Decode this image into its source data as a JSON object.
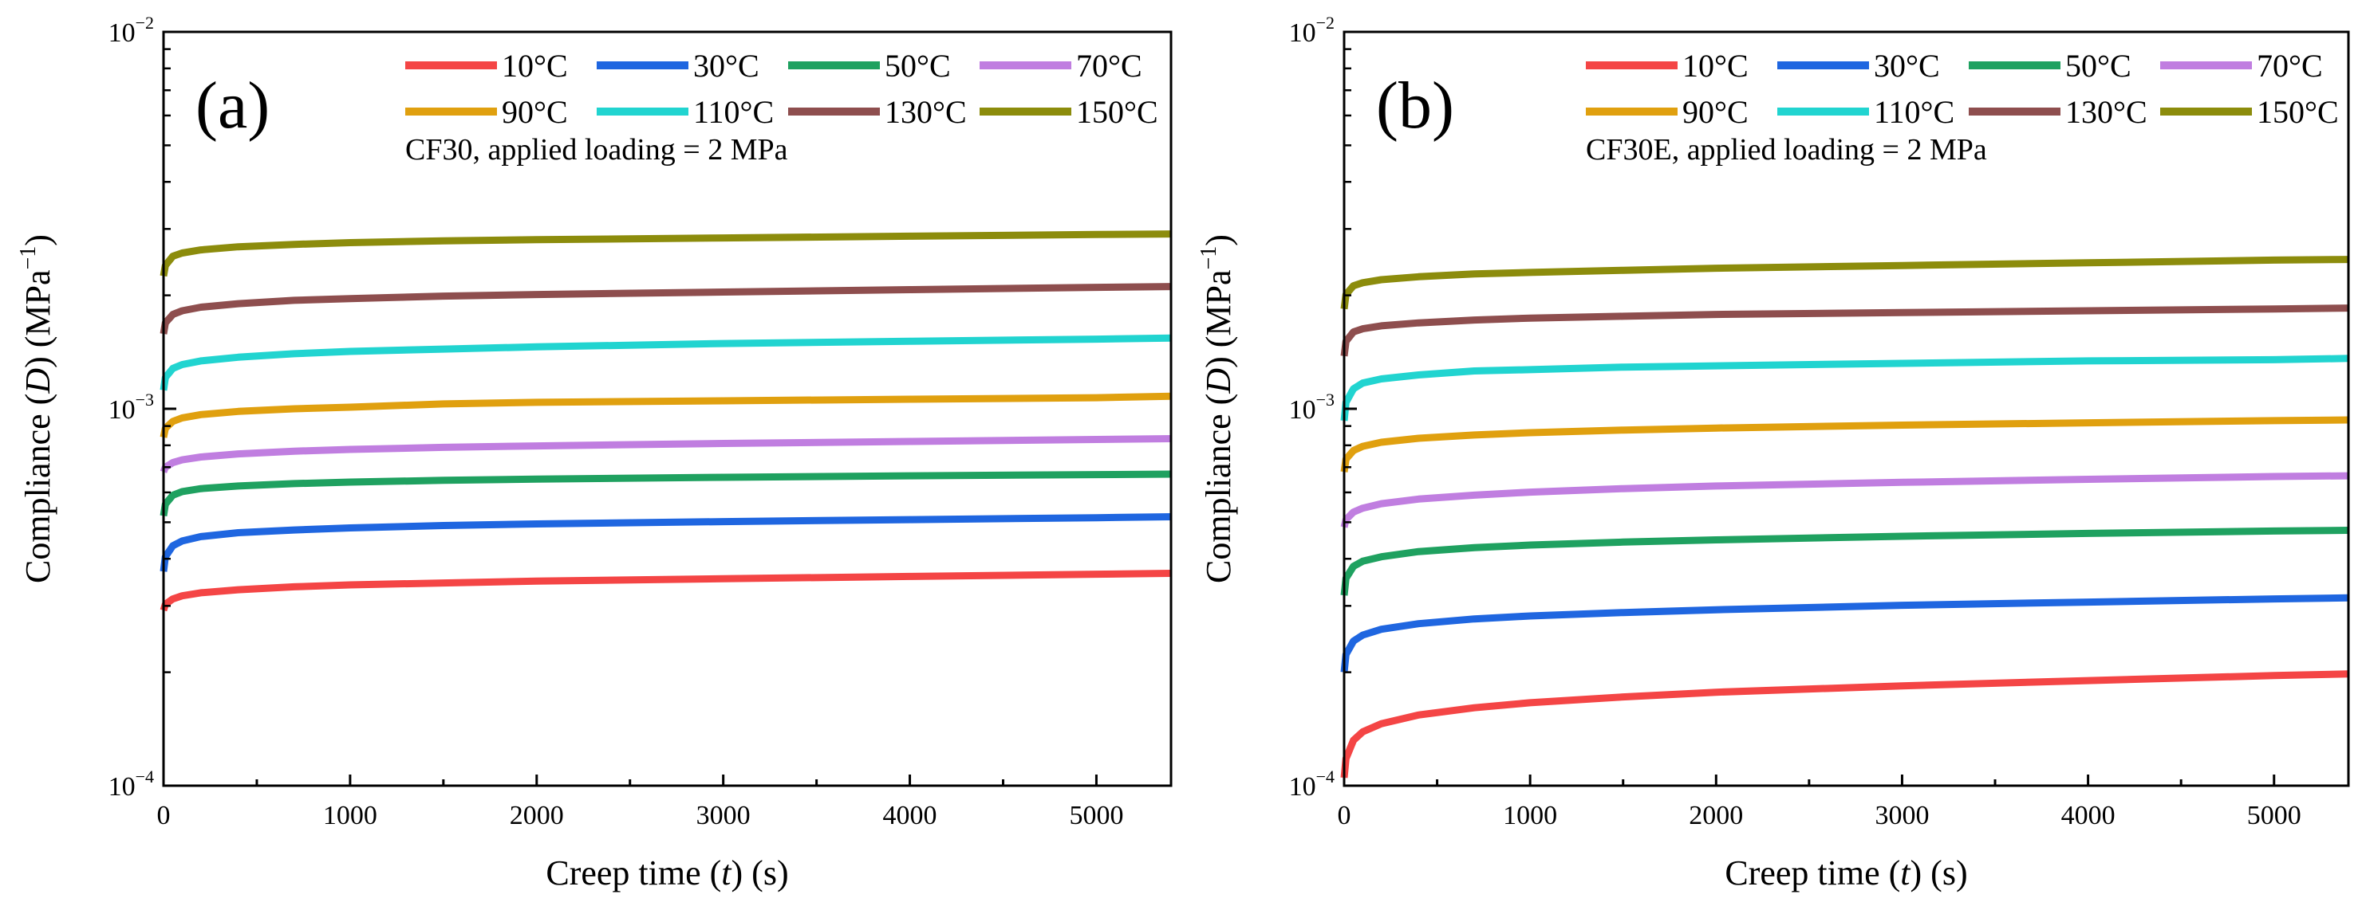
{
  "chart_data": [
    {
      "type": "line",
      "panel_label": "(a)",
      "annotation": "CF30, applied loading = 2 MPa",
      "xlabel_parts": [
        "Creep time (",
        "t",
        ") (s)"
      ],
      "ylabel_parts": [
        "Compliance (",
        "D",
        ") (MPa",
        "−1",
        ")"
      ],
      "xlim": [
        0,
        5400
      ],
      "ylim": [
        0.0001,
        0.01
      ],
      "yscale": "log",
      "xticks": [
        0,
        1000,
        2000,
        3000,
        4000,
        5000
      ],
      "xtick_labels": [
        "0",
        "1000",
        "2000",
        "3000",
        "4000",
        "5000"
      ],
      "yticks": [
        {
          "value": 0.01,
          "base": "10",
          "exp": "−2"
        },
        {
          "value": 0.001,
          "base": "10",
          "exp": "−3"
        },
        {
          "value": 0.0001,
          "base": "10",
          "exp": "−4"
        }
      ],
      "x": [
        0,
        10,
        50,
        100,
        200,
        400,
        700,
        1000,
        1500,
        2000,
        3000,
        4000,
        5000,
        5400
      ],
      "legend_position": "top-right",
      "series": [
        {
          "name": "10°C",
          "color": "#F44545",
          "values": [
            0.000292,
            0.000303,
            0.000313,
            0.000319,
            0.000325,
            0.000331,
            0.000337,
            0.000341,
            0.000345,
            0.000349,
            0.000354,
            0.000359,
            0.000364,
            0.000366
          ]
        },
        {
          "name": "30°C",
          "color": "#1F66E0",
          "values": [
            0.00037,
            0.000405,
            0.000433,
            0.000446,
            0.000458,
            0.000469,
            0.000477,
            0.000483,
            0.00049,
            0.000495,
            0.000502,
            0.000508,
            0.000514,
            0.000517
          ]
        },
        {
          "name": "50°C",
          "color": "#1FA160",
          "values": [
            0.00052,
            0.000558,
            0.00059,
            0.000603,
            0.000614,
            0.000624,
            0.000633,
            0.000639,
            0.000646,
            0.000651,
            0.000658,
            0.000664,
            0.000669,
            0.000671
          ]
        },
        {
          "name": "70°C",
          "color": "#C07EE0",
          "values": [
            0.00068,
            0.0007,
            0.00072,
            0.000732,
            0.000745,
            0.000759,
            0.000772,
            0.00078,
            0.00079,
            0.000797,
            0.000809,
            0.000819,
            0.000829,
            0.000833
          ]
        },
        {
          "name": "90°C",
          "color": "#E0A00F",
          "values": [
            0.00084,
            0.000888,
            0.000926,
            0.000946,
            0.000965,
            0.000984,
            0.001,
            0.00101,
            0.00103,
            0.00104,
            0.00105,
            0.00106,
            0.00107,
            0.00108
          ]
        },
        {
          "name": "110°C",
          "color": "#21D4D0",
          "values": [
            0.00112,
            0.00121,
            0.00128,
            0.00131,
            0.00134,
            0.00137,
            0.0014,
            0.00142,
            0.00144,
            0.00146,
            0.00149,
            0.00151,
            0.00153,
            0.00154
          ]
        },
        {
          "name": "130°C",
          "color": "#8E4E4E",
          "values": [
            0.00158,
            0.00169,
            0.00178,
            0.00182,
            0.00186,
            0.0019,
            0.00194,
            0.00196,
            0.00199,
            0.00201,
            0.00204,
            0.00207,
            0.0021,
            0.00211
          ]
        },
        {
          "name": "150°C",
          "color": "#8C8C0C",
          "values": [
            0.00225,
            0.0024,
            0.00254,
            0.00259,
            0.00264,
            0.00269,
            0.00273,
            0.00276,
            0.00279,
            0.00281,
            0.00284,
            0.00287,
            0.0029,
            0.00291
          ]
        }
      ]
    },
    {
      "type": "line",
      "panel_label": "(b)",
      "annotation": "CF30E, applied loading = 2 MPa",
      "xlabel_parts": [
        "Creep time (",
        "t",
        ") (s)"
      ],
      "ylabel_parts": [
        "Compliance (",
        "D",
        ") (MPa",
        "−1",
        ")"
      ],
      "xlim": [
        0,
        5400
      ],
      "ylim": [
        0.0001,
        0.01
      ],
      "yscale": "log",
      "xticks": [
        0,
        1000,
        2000,
        3000,
        4000,
        5000
      ],
      "xtick_labels": [
        "0",
        "1000",
        "2000",
        "3000",
        "4000",
        "5000"
      ],
      "yticks": [
        {
          "value": 0.01,
          "base": "10",
          "exp": "−2"
        },
        {
          "value": 0.001,
          "base": "10",
          "exp": "−3"
        },
        {
          "value": 0.0001,
          "base": "10",
          "exp": "−4"
        }
      ],
      "x": [
        0,
        10,
        50,
        100,
        200,
        400,
        700,
        1000,
        1500,
        2000,
        3000,
        4000,
        5000,
        5400
      ],
      "legend_position": "top-right",
      "series": [
        {
          "name": "10°C",
          "color": "#F44545",
          "values": [
            0.000105,
            0.000118,
            0.000132,
            0.000139,
            0.000146,
            0.000154,
            0.000161,
            0.000166,
            0.000172,
            0.000177,
            0.000184,
            0.00019,
            0.000196,
            0.000198
          ]
        },
        {
          "name": "30°C",
          "color": "#1F66E0",
          "values": [
            0.0002,
            0.000223,
            0.000242,
            0.000251,
            0.00026,
            0.000269,
            0.000277,
            0.000282,
            0.000288,
            0.000293,
            0.000301,
            0.000307,
            0.000313,
            0.000315
          ]
        },
        {
          "name": "50°C",
          "color": "#1FA160",
          "values": [
            0.00032,
            0.000355,
            0.000382,
            0.000394,
            0.000405,
            0.000418,
            0.000428,
            0.000435,
            0.000443,
            0.000449,
            0.000459,
            0.000467,
            0.000474,
            0.000476
          ]
        },
        {
          "name": "70°C",
          "color": "#C07EE0",
          "values": [
            0.000485,
            0.000508,
            0.000532,
            0.000545,
            0.00056,
            0.000576,
            0.00059,
            0.000601,
            0.000614,
            0.000624,
            0.000638,
            0.00065,
            0.000661,
            0.000664
          ]
        },
        {
          "name": "90°C",
          "color": "#E0A00F",
          "values": [
            0.00068,
            0.000735,
            0.000775,
            0.000795,
            0.000815,
            0.000835,
            0.000852,
            0.000864,
            0.000878,
            0.000889,
            0.000905,
            0.000918,
            0.00093,
            0.000934
          ]
        },
        {
          "name": "110°C",
          "color": "#21D4D0",
          "values": [
            0.00093,
            0.00104,
            0.00113,
            0.00117,
            0.0012,
            0.00123,
            0.00126,
            0.00127,
            0.00129,
            0.0013,
            0.00132,
            0.00134,
            0.00135,
            0.00136
          ]
        },
        {
          "name": "130°C",
          "color": "#8E4E4E",
          "values": [
            0.00138,
            0.00151,
            0.0016,
            0.00163,
            0.00166,
            0.00169,
            0.00172,
            0.00174,
            0.00176,
            0.00178,
            0.0018,
            0.00182,
            0.00184,
            0.00185
          ]
        },
        {
          "name": "150°C",
          "color": "#8C8C0C",
          "values": [
            0.00184,
            0.00201,
            0.00212,
            0.00216,
            0.0022,
            0.00224,
            0.00228,
            0.0023,
            0.00233,
            0.00236,
            0.0024,
            0.00244,
            0.00248,
            0.00249
          ]
        }
      ]
    }
  ]
}
